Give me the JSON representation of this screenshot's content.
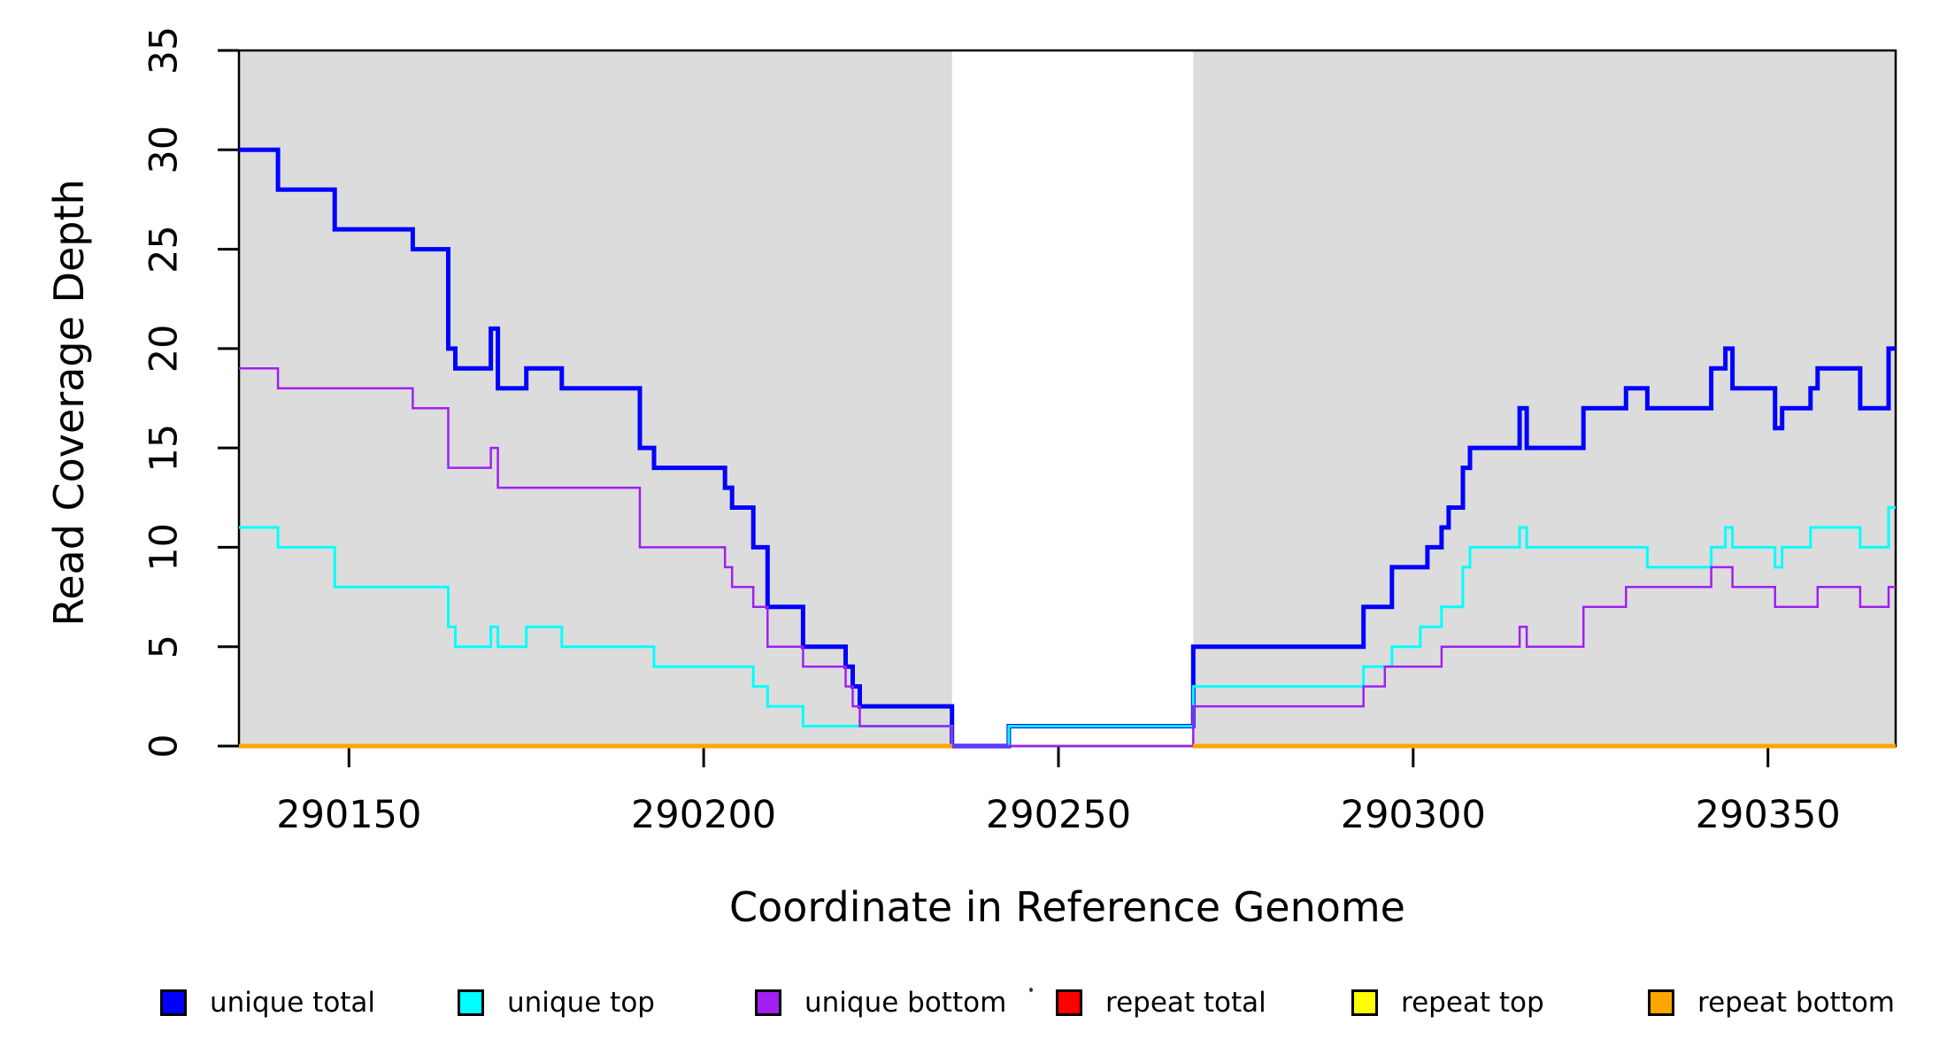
{
  "chart_data": {
    "type": "line",
    "subtype": "step",
    "xlabel": "Coordinate in Reference Genome",
    "ylabel": "Read Coverage Depth",
    "xlim": [
      290134.5,
      290368
    ],
    "ylim": [
      0,
      35
    ],
    "x_ticks": [
      290150,
      290200,
      290250,
      290300,
      290350
    ],
    "y_ticks": [
      0,
      5,
      10,
      15,
      20,
      25,
      30,
      35
    ],
    "grid": "off",
    "shade_color": "#dcdcdc",
    "shaded_regions": [
      {
        "x0": 290134.5,
        "x1": 290235
      },
      {
        "x0": 290269,
        "x1": 290368
      }
    ],
    "gap_region": {
      "x0": 290235,
      "x1": 290269
    },
    "legend_position": "bottom",
    "legend": [
      {
        "label": "unique total",
        "color": "#0000ff"
      },
      {
        "label": "unique top",
        "color": "#00ffff"
      },
      {
        "label": "unique bottom",
        "color": "#a020f0"
      },
      {
        "label": "repeat total",
        "color": "#ff0000"
      },
      {
        "label": "repeat top",
        "color": "#ffff00"
      },
      {
        "label": "repeat bottom",
        "color": "#ffa500"
      }
    ],
    "series": [
      {
        "name": "unique total",
        "color": "#0000ff",
        "width": 5,
        "steps": [
          [
            290134.5,
            30
          ],
          [
            290140,
            28
          ],
          [
            290148,
            26
          ],
          [
            290159,
            25
          ],
          [
            290164,
            20
          ],
          [
            290165,
            19
          ],
          [
            290170,
            21
          ],
          [
            290171,
            18
          ],
          [
            290175,
            19
          ],
          [
            290180,
            18
          ],
          [
            290191,
            15
          ],
          [
            290193,
            14
          ],
          [
            290203,
            13
          ],
          [
            290204,
            12
          ],
          [
            290207,
            10
          ],
          [
            290209,
            7
          ],
          [
            290214,
            5
          ],
          [
            290220,
            4
          ],
          [
            290221,
            3
          ],
          [
            290222,
            2
          ],
          [
            290235,
            0
          ],
          [
            290243,
            1
          ],
          [
            290269,
            5
          ],
          [
            290293,
            7
          ],
          [
            290297,
            9
          ],
          [
            290302,
            10
          ],
          [
            290304,
            11
          ],
          [
            290305,
            12
          ],
          [
            290307,
            14
          ],
          [
            290308,
            15
          ],
          [
            290315,
            17
          ],
          [
            290316,
            15
          ],
          [
            290324,
            17
          ],
          [
            290330,
            18
          ],
          [
            290333,
            17
          ],
          [
            290342,
            19
          ],
          [
            290344,
            20
          ],
          [
            290345,
            18
          ],
          [
            290351,
            16
          ],
          [
            290352,
            17
          ],
          [
            290356,
            18
          ],
          [
            290357,
            19
          ],
          [
            290363,
            17
          ],
          [
            290367,
            20
          ]
        ],
        "x_end": 290368
      },
      {
        "name": "unique top",
        "color": "#00ffff",
        "width": 3,
        "steps": [
          [
            290134.5,
            11
          ],
          [
            290140,
            10
          ],
          [
            290148,
            8
          ],
          [
            290164,
            6
          ],
          [
            290165,
            5
          ],
          [
            290170,
            6
          ],
          [
            290171,
            5
          ],
          [
            290175,
            6
          ],
          [
            290180,
            5
          ],
          [
            290193,
            4
          ],
          [
            290207,
            3
          ],
          [
            290209,
            2
          ],
          [
            290214,
            1
          ],
          [
            290235,
            0
          ],
          [
            290243,
            1
          ],
          [
            290269,
            3
          ],
          [
            290293,
            4
          ],
          [
            290297,
            5
          ],
          [
            290301,
            6
          ],
          [
            290304,
            7
          ],
          [
            290307,
            9
          ],
          [
            290308,
            10
          ],
          [
            290315,
            11
          ],
          [
            290316,
            10
          ],
          [
            290333,
            9
          ],
          [
            290342,
            10
          ],
          [
            290344,
            11
          ],
          [
            290345,
            10
          ],
          [
            290351,
            9
          ],
          [
            290352,
            10
          ],
          [
            290356,
            11
          ],
          [
            290363,
            10
          ],
          [
            290367,
            12
          ]
        ],
        "x_end": 290368
      },
      {
        "name": "unique bottom",
        "color": "#a020f0",
        "width": 2.5,
        "steps": [
          [
            290134.5,
            19
          ],
          [
            290140,
            18
          ],
          [
            290159,
            17
          ],
          [
            290164,
            14
          ],
          [
            290170,
            15
          ],
          [
            290171,
            13
          ],
          [
            290191,
            10
          ],
          [
            290203,
            9
          ],
          [
            290204,
            8
          ],
          [
            290207,
            7
          ],
          [
            290209,
            5
          ],
          [
            290214,
            4
          ],
          [
            290220,
            3
          ],
          [
            290221,
            2
          ],
          [
            290222,
            1
          ],
          [
            290235,
            0
          ],
          [
            290269,
            2
          ],
          [
            290293,
            3
          ],
          [
            290296,
            4
          ],
          [
            290304,
            5
          ],
          [
            290315,
            6
          ],
          [
            290316,
            5
          ],
          [
            290324,
            7
          ],
          [
            290330,
            8
          ],
          [
            290342,
            9
          ],
          [
            290345,
            8
          ],
          [
            290351,
            7
          ],
          [
            290357,
            8
          ],
          [
            290363,
            7
          ],
          [
            290367,
            8
          ]
        ],
        "x_end": 290368
      },
      {
        "name": "repeat total",
        "color": "#ff0000",
        "width": 3,
        "steps": [
          [
            290134.5,
            0
          ],
          [
            290235,
            null
          ],
          [
            290269,
            0
          ]
        ],
        "x_end": 290368
      },
      {
        "name": "repeat top",
        "color": "#ffff00",
        "width": 3,
        "steps": [
          [
            290134.5,
            0
          ],
          [
            290235,
            null
          ],
          [
            290269,
            0
          ]
        ],
        "x_end": 290368
      },
      {
        "name": "repeat bottom",
        "color": "#ffa500",
        "width": 5,
        "steps": [
          [
            290134.5,
            0
          ],
          [
            290235,
            null
          ],
          [
            290269,
            0
          ]
        ],
        "x_end": 290368
      }
    ]
  }
}
